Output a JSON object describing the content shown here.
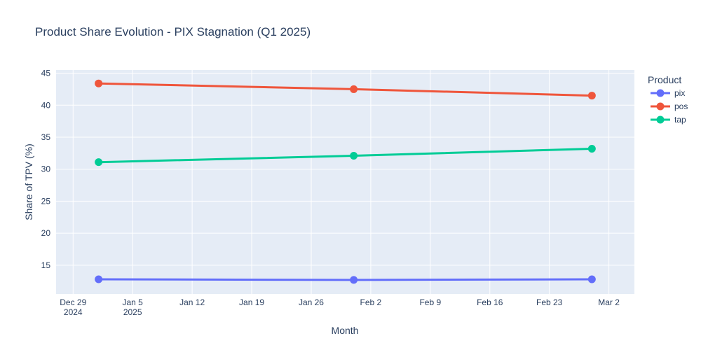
{
  "chart_data": {
    "type": "line",
    "title": "Product Share Evolution - PIX Stagnation (Q1 2025)",
    "xlabel": "Month",
    "ylabel": "Share of TPV (%)",
    "legend_title": "Product",
    "legend_position": "top-right",
    "grid": true,
    "x_type": "date",
    "xlim": [
      "2024-12-27",
      "2025-03-05"
    ],
    "ylim": [
      10.5,
      45.5
    ],
    "x_ticks": [
      {
        "date": "2024-12-29",
        "line1": "Dec 29",
        "line2": "2024"
      },
      {
        "date": "2025-01-05",
        "line1": "Jan 5",
        "line2": "2025"
      },
      {
        "date": "2025-01-12",
        "line1": "Jan 12",
        "line2": ""
      },
      {
        "date": "2025-01-19",
        "line1": "Jan 19",
        "line2": ""
      },
      {
        "date": "2025-01-26",
        "line1": "Jan 26",
        "line2": ""
      },
      {
        "date": "2025-02-02",
        "line1": "Feb 2",
        "line2": ""
      },
      {
        "date": "2025-02-09",
        "line1": "Feb 9",
        "line2": ""
      },
      {
        "date": "2025-02-16",
        "line1": "Feb 16",
        "line2": ""
      },
      {
        "date": "2025-02-23",
        "line1": "Feb 23",
        "line2": ""
      },
      {
        "date": "2025-03-02",
        "line1": "Mar 2",
        "line2": ""
      }
    ],
    "y_ticks": [
      15,
      20,
      25,
      30,
      35,
      40,
      45
    ],
    "x": [
      "2025-01-01",
      "2025-01-31",
      "2025-02-28"
    ],
    "series": [
      {
        "name": "pix",
        "color": "#636efa",
        "values": [
          12.8,
          12.7,
          12.8
        ]
      },
      {
        "name": "pos",
        "color": "#ef553b",
        "values": [
          43.4,
          42.5,
          41.5
        ]
      },
      {
        "name": "tap",
        "color": "#00cc96",
        "values": [
          31.1,
          32.1,
          33.2
        ]
      }
    ]
  },
  "colors": {
    "plot_background": "#e5ecf6",
    "grid": "#ffffff",
    "text": "#2a3f5f"
  }
}
